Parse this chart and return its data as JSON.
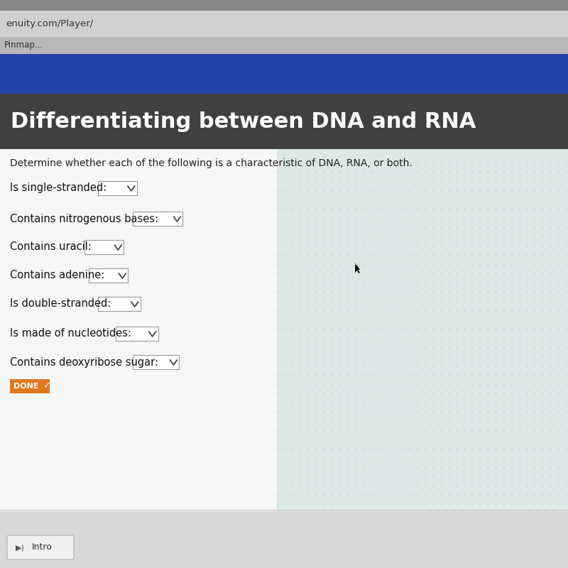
{
  "browser_bar_text": "enuity.com/Player/",
  "pinmap_text": "Pinmap...",
  "title": "Differentiating between DNA and RNA",
  "subtitle": "Determine whether each of the following is a characteristic of DNA, RNA, or both.",
  "questions": [
    "Is single-stranded:",
    "Contains nitrogenous bases:",
    "Contains uracil:",
    "Contains adenine:",
    "Is double-stranded:",
    "Is made of nucleotides:",
    "Contains deoxyribose sugar:"
  ],
  "done_text": "DONE",
  "intro_text": "Intro",
  "colors": {
    "browser_bar_bg": "#c8c8c8",
    "nav_bar_bg": "#2244aa",
    "title_bg": "#404040",
    "title_text": "#ffffff",
    "content_bg": "#dde8e6",
    "white_panel_bg": "#f5f7f7",
    "question_text": "#111111",
    "subtitle_text": "#222222",
    "dropdown_bg": "#ffffff",
    "dropdown_border": "#999999",
    "done_bg": "#e07820",
    "done_text": "#ffffff",
    "intro_bg": "#f0f0f0",
    "intro_border": "#bbbbbb",
    "intro_text": "#333333",
    "browser_text": "#333333",
    "pinmap_text_color": "#333333",
    "teal_pattern": "#b8d8d4",
    "separator_line": "#cccccc"
  },
  "figsize": [
    8.0,
    8.0
  ],
  "dpi": 100
}
